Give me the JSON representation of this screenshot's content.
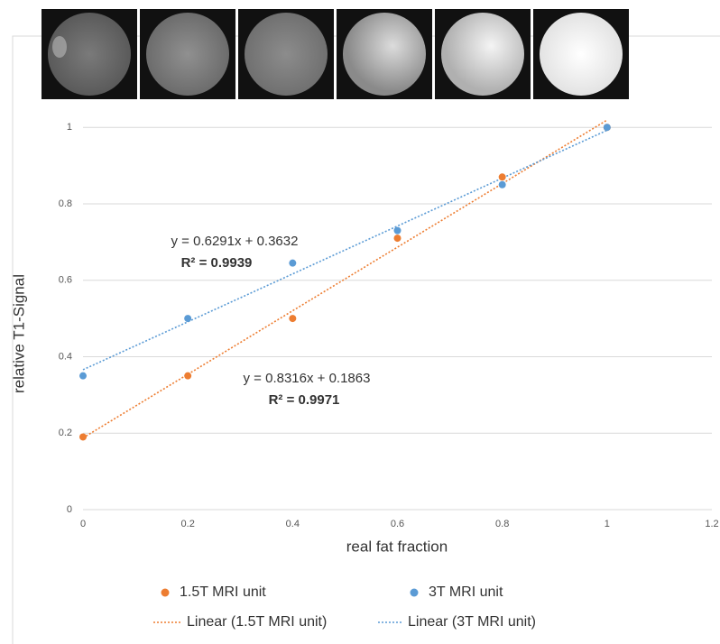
{
  "chart_data": {
    "type": "scatter",
    "x_label": "real fat fraction",
    "y_label": "relative T1-Signal",
    "xlim": [
      0,
      1.2
    ],
    "ylim": [
      0,
      1.05
    ],
    "xticks": [
      0,
      0.2,
      0.4,
      0.6,
      0.8,
      1,
      1.2
    ],
    "yticks": [
      0,
      0.2,
      0.4,
      0.6,
      0.8,
      1
    ],
    "grid": true,
    "trendline": "linear",
    "x": [
      0,
      0.2,
      0.4,
      0.6,
      0.8,
      1
    ],
    "series": [
      {
        "name": "1.5T MRI unit",
        "trendline_name": "Linear (1.5T MRI unit)",
        "color": "#ed7d31",
        "values": [
          0.19,
          0.35,
          0.5,
          0.71,
          0.87,
          1.0
        ],
        "equation": "y = 0.8316x + 0.1863",
        "r_squared": "R² = 0.9971"
      },
      {
        "name": "3T MRI unit",
        "trendline_name": "Linear (3T MRI unit)",
        "color": "#5b9bd5",
        "values": [
          0.35,
          0.5,
          0.645,
          0.73,
          0.85,
          1.0
        ],
        "equation": "y = 0.6291x + 0.3632",
        "r_squared": "R² = 0.9939"
      }
    ],
    "legend": "bottom"
  }
}
